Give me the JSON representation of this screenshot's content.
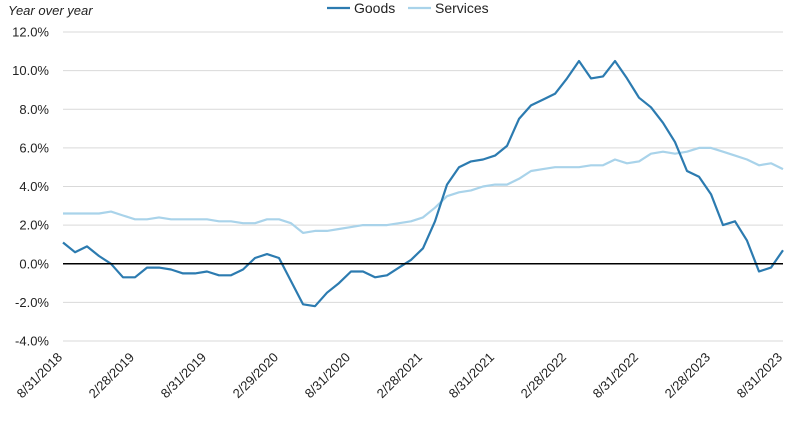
{
  "chart_data": {
    "type": "line",
    "ylabel": "Year over year",
    "ylim": [
      -4,
      12
    ],
    "y_ticks": [
      "12.0%",
      "10.0%",
      "8.0%",
      "6.0%",
      "4.0%",
      "2.0%",
      "0.0%",
      "-2.0%",
      "-4.0%"
    ],
    "y_tick_values": [
      12,
      10,
      8,
      6,
      4,
      2,
      0,
      -2,
      -4
    ],
    "grid": true,
    "legend_position": "top",
    "x_ticks": [
      "8/31/2018",
      "2/28/2019",
      "8/31/2019",
      "2/29/2020",
      "8/31/2020",
      "2/28/2021",
      "8/31/2021",
      "2/28/2022",
      "8/31/2022",
      "2/28/2023",
      "8/31/2023"
    ],
    "x_tick_index": [
      0,
      6,
      12,
      18,
      24,
      30,
      36,
      42,
      48,
      54,
      60
    ],
    "series": [
      {
        "name": "Goods",
        "color": "#2c7bb0",
        "values": [
          1.1,
          0.6,
          0.9,
          0.4,
          0.0,
          -0.7,
          -0.7,
          -0.2,
          -0.2,
          -0.3,
          -0.5,
          -0.5,
          -0.4,
          -0.6,
          -0.6,
          -0.3,
          0.3,
          0.5,
          0.3,
          -0.9,
          -2.1,
          -2.2,
          -1.5,
          -1.0,
          -0.4,
          -0.4,
          -0.7,
          -0.6,
          -0.2,
          0.2,
          0.8,
          2.2,
          4.1,
          5.0,
          5.3,
          5.4,
          5.6,
          6.1,
          7.5,
          8.2,
          8.5,
          8.8,
          9.6,
          10.5,
          9.6,
          9.7,
          10.5,
          9.6,
          8.6,
          8.1,
          7.3,
          6.3,
          4.8,
          4.5,
          3.6,
          2.0,
          2.2,
          1.2,
          -0.4,
          -0.2,
          0.7
        ]
      },
      {
        "name": "Services",
        "color": "#a9d3ea",
        "values": [
          2.6,
          2.6,
          2.6,
          2.6,
          2.7,
          2.5,
          2.3,
          2.3,
          2.4,
          2.3,
          2.3,
          2.3,
          2.3,
          2.2,
          2.2,
          2.1,
          2.1,
          2.3,
          2.3,
          2.1,
          1.6,
          1.7,
          1.7,
          1.8,
          1.9,
          2.0,
          2.0,
          2.0,
          2.1,
          2.2,
          2.4,
          2.9,
          3.5,
          3.7,
          3.8,
          4.0,
          4.1,
          4.1,
          4.4,
          4.8,
          4.9,
          5.0,
          5.0,
          5.0,
          5.1,
          5.1,
          5.4,
          5.2,
          5.3,
          5.7,
          5.8,
          5.7,
          5.8,
          6.0,
          6.0,
          5.8,
          5.6,
          5.4,
          5.1,
          5.2,
          4.9
        ]
      }
    ]
  }
}
